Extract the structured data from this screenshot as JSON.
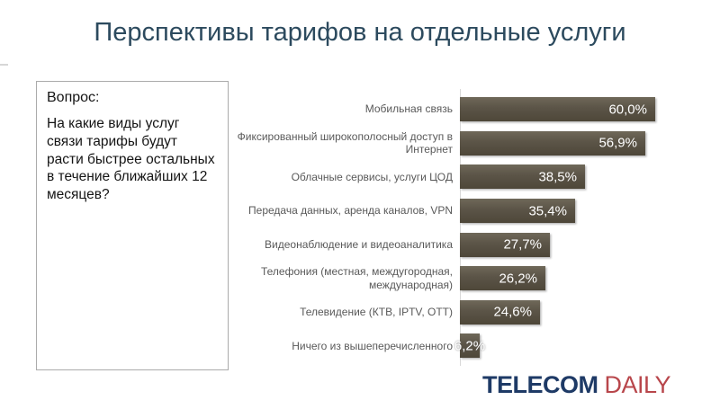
{
  "header": {
    "title": "Перспективы тарифов на отдельные услуги",
    "title_color": "#2c4a5e"
  },
  "question": {
    "heading": "Вопрос:",
    "text": "На какие виды услуг связи тарифы будут расти быстрее остальных в течение ближайших 12 месяцев?"
  },
  "chart_data": {
    "type": "bar",
    "orientation": "horizontal",
    "title": "Перспективы тарифов на отдельные услуги",
    "categories": [
      "Мобильная связь",
      "Фиксированный широкополосный доступ в Интернет",
      "Облачные сервисы, услуги ЦОД",
      "Передача данных, аренда каналов, VPN",
      "Видеонаблюдение и видеоаналитика",
      "Телефония (местная, междугородная, международная)",
      "Телевидение (КТВ, IPTV, ОТТ)",
      "Ничего из вышеперечисленного"
    ],
    "values": [
      60.0,
      56.9,
      38.5,
      35.4,
      27.7,
      26.2,
      24.6,
      6.2
    ],
    "value_labels": [
      "60,0%",
      "56,9%",
      "38,5%",
      "35,4%",
      "27,7%",
      "26,2%",
      "24,6%",
      "6,2%"
    ],
    "xlabel": "",
    "ylabel": "",
    "xlim": [
      0,
      62
    ],
    "grid": false,
    "legend": false,
    "bar_color": "#5b5447",
    "value_label_color": "#ffffff",
    "category_label_color": "#595959"
  },
  "logo": {
    "part1": "TELECOM",
    "part2": "DAILY",
    "part1_color": "#1e3a66",
    "part2_color": "#b8464b"
  }
}
